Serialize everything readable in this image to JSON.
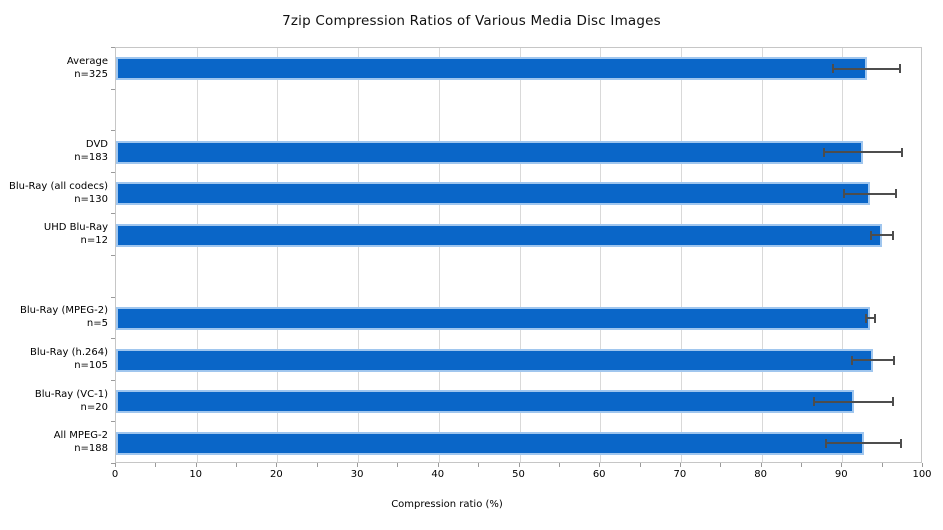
{
  "title": "7zip Compression Ratios of Various Media Disc Images",
  "xlabel": "Compression ratio (%)",
  "chart_data": {
    "type": "bar",
    "orientation": "horizontal",
    "title": "7zip Compression Ratios of Various Media Disc Images",
    "xlabel": "Compression ratio (%)",
    "xlim": [
      0,
      100
    ],
    "x_tick_labels": [
      0,
      10,
      20,
      30,
      40,
      50,
      60,
      70,
      80,
      90,
      100
    ],
    "x_minor_tick_step": 5,
    "grid": "vertical-major-only",
    "legend": "none",
    "rows_total": 10,
    "blank_rows": [
      1,
      5
    ],
    "categories": [
      {
        "label": "Average",
        "n": "n=325",
        "row": 0,
        "value": 93.0,
        "err_low": 88.9,
        "err_high": 97.1
      },
      {
        "label": "DVD",
        "n": "n=183",
        "row": 2,
        "value": 92.6,
        "err_low": 87.7,
        "err_high": 97.4
      },
      {
        "label": "Blu-Ray (all codecs)",
        "n": "n=130",
        "row": 3,
        "value": 93.4,
        "err_low": 90.2,
        "err_high": 96.6
      },
      {
        "label": "UHD Blu-Ray",
        "n": "n=12",
        "row": 4,
        "value": 94.9,
        "err_low": 93.6,
        "err_high": 96.3
      },
      {
        "label": "Blu-Ray (MPEG-2)",
        "n": "n=5",
        "row": 6,
        "value": 93.4,
        "err_low": 92.9,
        "err_high": 94.1
      },
      {
        "label": "Blu-Ray (h.264)",
        "n": "n=105",
        "row": 7,
        "value": 93.8,
        "err_low": 91.2,
        "err_high": 96.4
      },
      {
        "label": "Blu-Ray (VC-1)",
        "n": "n=20",
        "row": 8,
        "value": 91.4,
        "err_low": 86.5,
        "err_high": 96.3
      },
      {
        "label": "All MPEG-2",
        "n": "n=188",
        "row": 9,
        "value": 92.7,
        "err_low": 88.0,
        "err_high": 97.3
      }
    ],
    "colors": {
      "bar_fill": "#0a66c8",
      "bar_outline": "#a0c6ee",
      "error_bar": "#4d4d4d",
      "gridline": "#d9d9d9",
      "plot_border": "#c6c6c6",
      "tick": "#9a9a9a",
      "text": "#000000"
    }
  }
}
